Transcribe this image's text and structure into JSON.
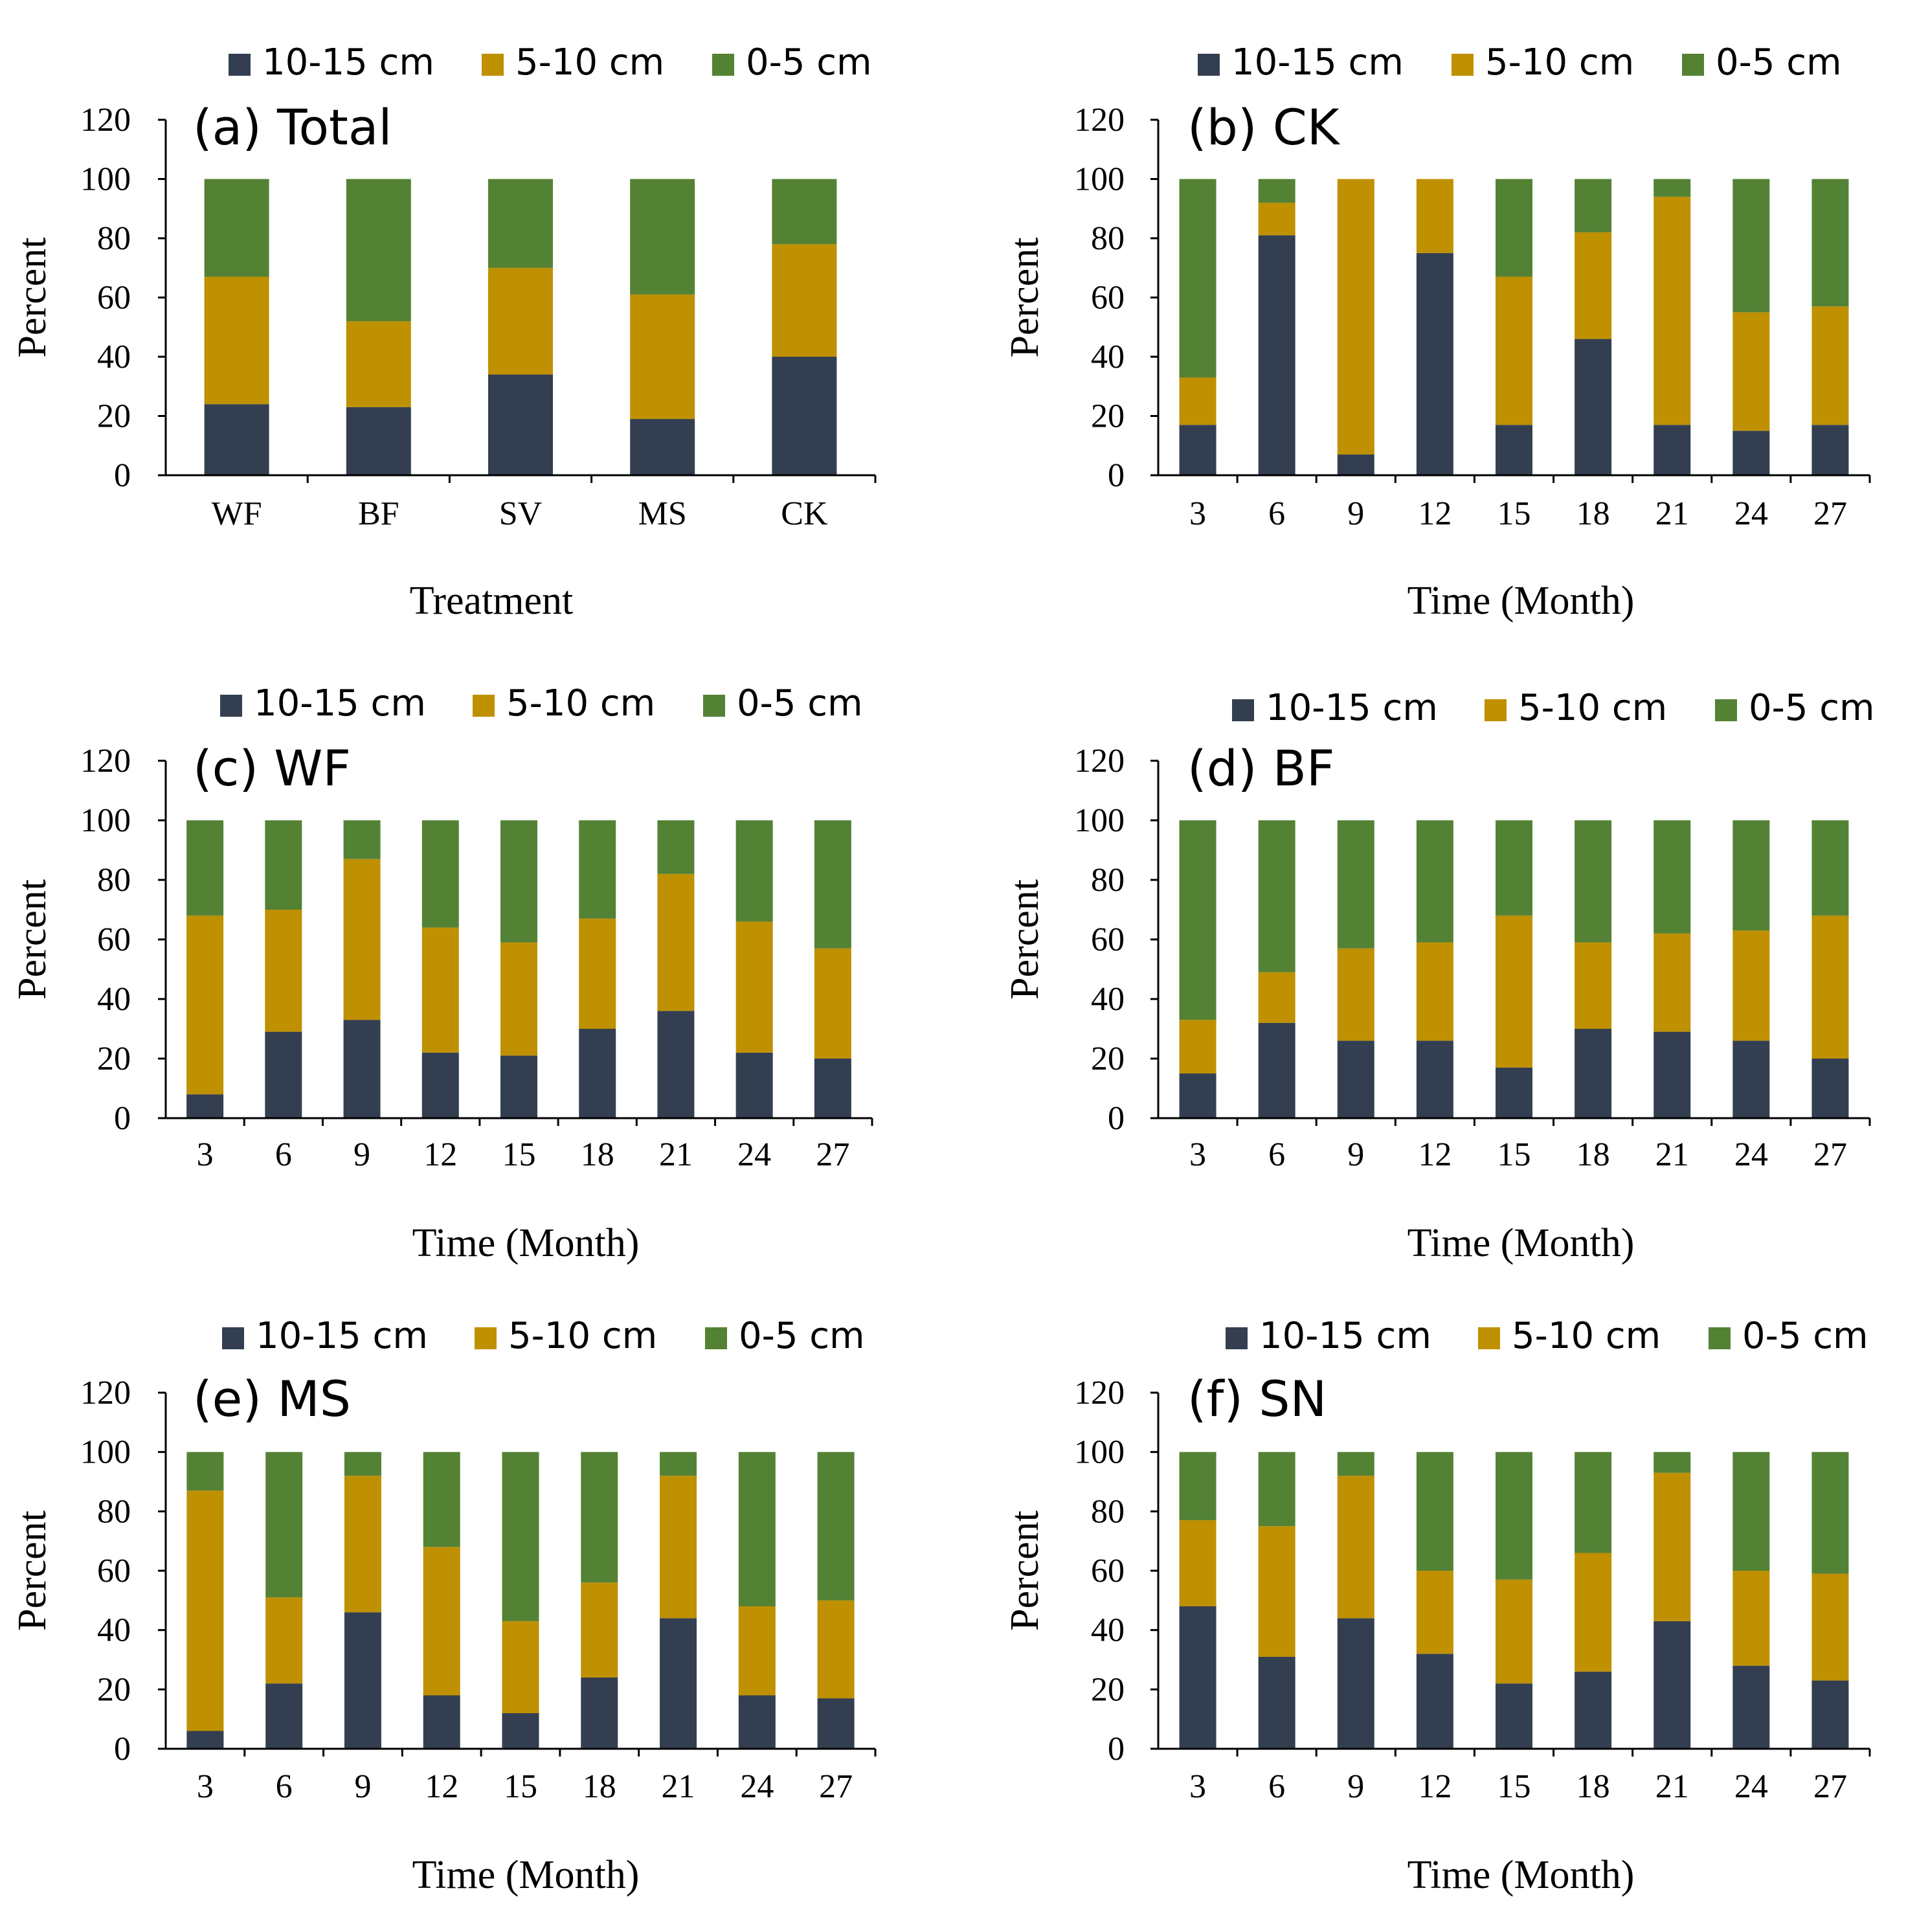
{
  "legend": {
    "items": [
      "10-15 cm",
      "5-10 cm",
      "0-5 cm"
    ]
  },
  "colors": {
    "10-15 cm": "#333f50",
    "5-10 cm": "#bf9000",
    "0-5 cm": "#548235"
  },
  "chart_data": [
    {
      "id": "a",
      "type": "bar",
      "stacked": true,
      "title": "(a) Total",
      "xlabel": "Treatment",
      "ylabel": "Percent",
      "ylim": [
        0,
        120
      ],
      "yticks": [
        0,
        20,
        40,
        60,
        80,
        100,
        120
      ],
      "categories": [
        "WF",
        "BF",
        "SV",
        "MS",
        "CK"
      ],
      "series": [
        {
          "name": "10-15 cm",
          "values": [
            24,
            23,
            34,
            19,
            40
          ]
        },
        {
          "name": "5-10 cm",
          "values": [
            43,
            29,
            36,
            42,
            38
          ]
        },
        {
          "name": "0-5 cm",
          "values": [
            33,
            48,
            30,
            39,
            22
          ]
        }
      ]
    },
    {
      "id": "b",
      "type": "bar",
      "stacked": true,
      "title": "(b) CK",
      "xlabel": "Time (Month)",
      "ylabel": "Percent",
      "ylim": [
        0,
        120
      ],
      "yticks": [
        0,
        20,
        40,
        60,
        80,
        100,
        120
      ],
      "categories": [
        "3",
        "6",
        "9",
        "12",
        "15",
        "18",
        "21",
        "24",
        "27"
      ],
      "series": [
        {
          "name": "10-15 cm",
          "values": [
            17,
            81,
            7,
            75,
            17,
            46,
            17,
            15,
            17
          ]
        },
        {
          "name": "5-10 cm",
          "values": [
            16,
            11,
            93,
            25,
            50,
            36,
            77,
            40,
            40
          ]
        },
        {
          "name": "0-5 cm",
          "values": [
            67,
            8,
            0,
            0,
            33,
            18,
            6,
            45,
            43
          ]
        }
      ]
    },
    {
      "id": "c",
      "type": "bar",
      "stacked": true,
      "title": "(c) WF",
      "xlabel": "Time (Month)",
      "ylabel": "Percent",
      "ylim": [
        0,
        120
      ],
      "yticks": [
        0,
        20,
        40,
        60,
        80,
        100,
        120
      ],
      "categories": [
        "3",
        "6",
        "9",
        "12",
        "15",
        "18",
        "21",
        "24",
        "27"
      ],
      "series": [
        {
          "name": "10-15 cm",
          "values": [
            8,
            29,
            33,
            22,
            21,
            30,
            36,
            22,
            20
          ]
        },
        {
          "name": "5-10 cm",
          "values": [
            60,
            41,
            54,
            42,
            38,
            37,
            46,
            44,
            37
          ]
        },
        {
          "name": "0-5 cm",
          "values": [
            32,
            30,
            13,
            36,
            41,
            33,
            18,
            34,
            43
          ]
        }
      ]
    },
    {
      "id": "d",
      "type": "bar",
      "stacked": true,
      "title": "(d) BF",
      "xlabel": "Time (Month)",
      "ylabel": "Percent",
      "ylim": [
        0,
        120
      ],
      "yticks": [
        0,
        20,
        40,
        60,
        80,
        100,
        120
      ],
      "categories": [
        "3",
        "6",
        "9",
        "12",
        "15",
        "18",
        "21",
        "24",
        "27"
      ],
      "series": [
        {
          "name": "10-15 cm",
          "values": [
            15,
            32,
            26,
            26,
            17,
            30,
            29,
            26,
            20
          ]
        },
        {
          "name": "5-10 cm",
          "values": [
            18,
            17,
            31,
            33,
            51,
            29,
            33,
            37,
            48
          ]
        },
        {
          "name": "0-5 cm",
          "values": [
            67,
            51,
            43,
            41,
            32,
            41,
            38,
            37,
            32
          ]
        }
      ]
    },
    {
      "id": "e",
      "type": "bar",
      "stacked": true,
      "title": "(e) MS",
      "xlabel": "Time (Month)",
      "ylabel": "Percent",
      "ylim": [
        0,
        120
      ],
      "yticks": [
        0,
        20,
        40,
        60,
        80,
        100,
        120
      ],
      "categories": [
        "3",
        "6",
        "9",
        "12",
        "15",
        "18",
        "21",
        "24",
        "27"
      ],
      "series": [
        {
          "name": "10-15 cm",
          "values": [
            6,
            22,
            46,
            18,
            12,
            24,
            44,
            18,
            17
          ]
        },
        {
          "name": "5-10 cm",
          "values": [
            81,
            29,
            46,
            50,
            31,
            32,
            48,
            30,
            33
          ]
        },
        {
          "name": "0-5 cm",
          "values": [
            13,
            49,
            8,
            32,
            57,
            44,
            8,
            52,
            50
          ]
        }
      ]
    },
    {
      "id": "f",
      "type": "bar",
      "stacked": true,
      "title": "(f) SN",
      "xlabel": "Time (Month)",
      "ylabel": "Percent",
      "ylim": [
        0,
        120
      ],
      "yticks": [
        0,
        20,
        40,
        60,
        80,
        100,
        120
      ],
      "categories": [
        "3",
        "6",
        "9",
        "12",
        "15",
        "18",
        "21",
        "24",
        "27"
      ],
      "series": [
        {
          "name": "10-15 cm",
          "values": [
            48,
            31,
            44,
            32,
            22,
            26,
            43,
            28,
            23
          ]
        },
        {
          "name": "5-10 cm",
          "values": [
            29,
            44,
            48,
            28,
            35,
            40,
            50,
            32,
            36
          ]
        },
        {
          "name": "0-5 cm",
          "values": [
            23,
            25,
            8,
            40,
            43,
            34,
            7,
            40,
            41
          ]
        }
      ]
    }
  ]
}
